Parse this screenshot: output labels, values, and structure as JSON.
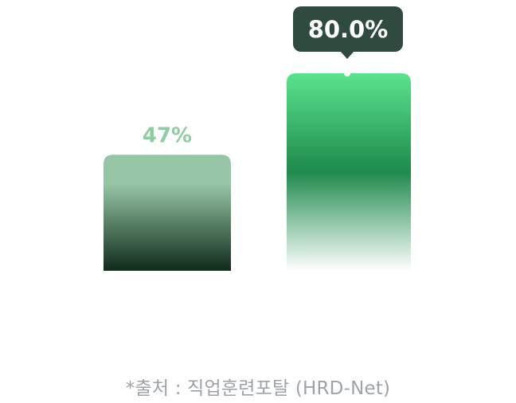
{
  "chart_data": {
    "type": "bar",
    "categories": [
      "",
      ""
    ],
    "values": [
      47,
      80.0
    ],
    "data_labels": [
      "47%",
      "80.0%"
    ],
    "ylim": [
      0,
      100
    ],
    "grid": true,
    "colors": {
      "bar_1_top": "#96c6a6",
      "bar_1_bottom": "#0f2b1a",
      "bar_2_top": "#5ae38e",
      "bar_2_mid": "#1f8a4c",
      "bar_2_bottom": "#ffffff",
      "label_1": "#8fcca0",
      "tooltip_bg": "#2f4a3f",
      "tooltip_text": "#ffffff"
    }
  },
  "source": "*출처 : 직업훈련포탈 (HRD-Net)"
}
